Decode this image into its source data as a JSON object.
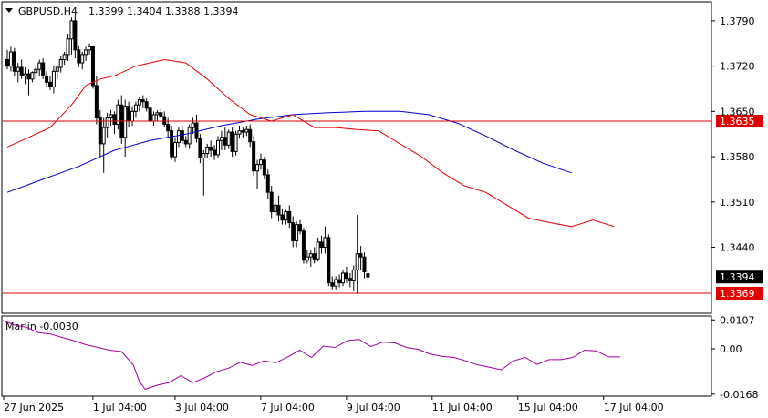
{
  "header": {
    "symbol_timeframe": "GBPUSD,H4",
    "ohlc": "1.3399 1.3404 1.3388 1.3394"
  },
  "colors": {
    "background": "#ffffff",
    "candle": "#000000",
    "ma_fast": "#e00000",
    "ma_slow": "#0000cc",
    "level_line": "#e00000",
    "oscillator": "#a000a0",
    "grid_border": "#000000"
  },
  "chart_data": [
    {
      "type": "candlestick",
      "name": "GBPUSD,H4",
      "y_axis_ticks": [
        "1.3790",
        "1.3720",
        "1.3650",
        "1.3580",
        "1.3510",
        "1.3440"
      ],
      "ylim": [
        1.3338,
        1.3818
      ],
      "x_axis_ticks": [
        "27 Jun 2025",
        "1 Jul 04:00",
        "3 Jul 04:00",
        "7 Jul 04:00",
        "9 Jul 04:00",
        "11 Jul 04:00",
        "15 Jul 04:00",
        "17 Jul 04:00"
      ],
      "x_tick_bar_index": [
        0,
        25,
        48,
        72,
        96,
        120,
        144,
        168
      ],
      "current_price": "1.3394",
      "levels": [
        {
          "value": 1.3635,
          "label": "1.3635"
        },
        {
          "value": 1.3369,
          "label": "1.3369"
        }
      ],
      "candles_ohlc": [
        [
          1.373,
          1.3745,
          1.3715,
          1.372
        ],
        [
          1.372,
          1.375,
          1.3712,
          1.3742
        ],
        [
          1.3742,
          1.3748,
          1.3705,
          1.3712
        ],
        [
          1.3712,
          1.3725,
          1.3695,
          1.3718
        ],
        [
          1.3718,
          1.373,
          1.37,
          1.3705
        ],
        [
          1.3705,
          1.3718,
          1.3692,
          1.3708
        ],
        [
          1.3708,
          1.3715,
          1.3675,
          1.37
        ],
        [
          1.37,
          1.3712,
          1.3695,
          1.371
        ],
        [
          1.371,
          1.372,
          1.37,
          1.3715
        ],
        [
          1.3715,
          1.373,
          1.3705,
          1.3725
        ],
        [
          1.3725,
          1.3732,
          1.37,
          1.3705
        ],
        [
          1.3705,
          1.3712,
          1.3688,
          1.3695
        ],
        [
          1.3695,
          1.3705,
          1.3683,
          1.3688
        ],
        [
          1.3688,
          1.372,
          1.3678,
          1.3712
        ],
        [
          1.3712,
          1.3722,
          1.37,
          1.3718
        ],
        [
          1.3718,
          1.3735,
          1.371,
          1.373
        ],
        [
          1.373,
          1.3742,
          1.3722,
          1.3738
        ],
        [
          1.3738,
          1.377,
          1.3728,
          1.3762
        ],
        [
          1.3762,
          1.3795,
          1.3738,
          1.379
        ],
        [
          1.379,
          1.38,
          1.3732,
          1.3745
        ],
        [
          1.3745,
          1.3752,
          1.3718,
          1.3725
        ],
        [
          1.3725,
          1.3742,
          1.3715,
          1.3738
        ],
        [
          1.3738,
          1.375,
          1.3728,
          1.3745
        ],
        [
          1.3745,
          1.3755,
          1.3738,
          1.375
        ],
        [
          1.375,
          1.3752,
          1.3685,
          1.369
        ],
        [
          1.369,
          1.3705,
          1.363,
          1.364
        ],
        [
          1.364,
          1.3652,
          1.358,
          1.36
        ],
        [
          1.36,
          1.364,
          1.3555,
          1.3625
        ],
        [
          1.3625,
          1.3648,
          1.361,
          1.364
        ],
        [
          1.364,
          1.3652,
          1.3628,
          1.3645
        ],
        [
          1.3645,
          1.365,
          1.3615,
          1.363
        ],
        [
          1.363,
          1.3668,
          1.3622,
          1.366
        ],
        [
          1.366,
          1.3675,
          1.36,
          1.361
        ],
        [
          1.361,
          1.3668,
          1.358,
          1.3658
        ],
        [
          1.3658,
          1.3665,
          1.3625,
          1.3635
        ],
        [
          1.3635,
          1.3658,
          1.3628,
          1.365
        ],
        [
          1.365,
          1.3665,
          1.364,
          1.366
        ],
        [
          1.366,
          1.3672,
          1.365,
          1.3668
        ],
        [
          1.3668,
          1.3675,
          1.3655,
          1.3665
        ],
        [
          1.3665,
          1.367,
          1.365,
          1.3655
        ],
        [
          1.3655,
          1.3662,
          1.3628,
          1.3635
        ],
        [
          1.3635,
          1.365,
          1.3628,
          1.3645
        ],
        [
          1.3645,
          1.3652,
          1.3635,
          1.3648
        ],
        [
          1.3648,
          1.3655,
          1.3638,
          1.3642
        ],
        [
          1.3642,
          1.365,
          1.3625,
          1.363
        ],
        [
          1.363,
          1.364,
          1.361,
          1.362
        ],
        [
          1.362,
          1.3628,
          1.3575,
          1.358
        ],
        [
          1.358,
          1.361,
          1.3572,
          1.3602
        ],
        [
          1.3602,
          1.3625,
          1.3595,
          1.362
        ],
        [
          1.362,
          1.3628,
          1.36,
          1.3605
        ],
        [
          1.3605,
          1.3612,
          1.3595,
          1.36
        ],
        [
          1.36,
          1.363,
          1.3592,
          1.3625
        ],
        [
          1.3625,
          1.364,
          1.3615,
          1.3632
        ],
        [
          1.3632,
          1.3645,
          1.3602,
          1.3608
        ],
        [
          1.3608,
          1.3615,
          1.357,
          1.3578
        ],
        [
          1.3578,
          1.359,
          1.352,
          1.3585
        ],
        [
          1.3585,
          1.36,
          1.3578,
          1.3595
        ],
        [
          1.3595,
          1.3605,
          1.358,
          1.359
        ],
        [
          1.359,
          1.3598,
          1.3575,
          1.3583
        ],
        [
          1.3583,
          1.3612,
          1.3578,
          1.3605
        ],
        [
          1.3605,
          1.362,
          1.359,
          1.361
        ],
        [
          1.361,
          1.3625,
          1.359,
          1.3598
        ],
        [
          1.3598,
          1.3622,
          1.3592,
          1.3618
        ],
        [
          1.3618,
          1.3625,
          1.358,
          1.3588
        ],
        [
          1.3588,
          1.362,
          1.3582,
          1.3615
        ],
        [
          1.3615,
          1.3628,
          1.3608,
          1.362
        ],
        [
          1.362,
          1.3625,
          1.361,
          1.3618
        ],
        [
          1.3618,
          1.3628,
          1.3612,
          1.3622
        ],
        [
          1.3622,
          1.363,
          1.3595,
          1.3603
        ],
        [
          1.3603,
          1.3612,
          1.355,
          1.3558
        ],
        [
          1.3558,
          1.3575,
          1.353,
          1.3568
        ],
        [
          1.3568,
          1.3585,
          1.356,
          1.3575
        ],
        [
          1.3575,
          1.358,
          1.3545,
          1.3552
        ],
        [
          1.3552,
          1.356,
          1.3515,
          1.3525
        ],
        [
          1.3525,
          1.3535,
          1.3485,
          1.3495
        ],
        [
          1.3495,
          1.3515,
          1.3488,
          1.3505
        ],
        [
          1.3505,
          1.352,
          1.348,
          1.349
        ],
        [
          1.349,
          1.35,
          1.3475,
          1.3482
        ],
        [
          1.3482,
          1.3498,
          1.3475,
          1.3495
        ],
        [
          1.3495,
          1.3505,
          1.347,
          1.3478
        ],
        [
          1.3478,
          1.3488,
          1.344,
          1.345
        ],
        [
          1.345,
          1.348,
          1.344,
          1.3475
        ],
        [
          1.3475,
          1.3482,
          1.346,
          1.3465
        ],
        [
          1.3465,
          1.347,
          1.3415,
          1.342
        ],
        [
          1.342,
          1.3435,
          1.3415,
          1.3425
        ],
        [
          1.3425,
          1.3435,
          1.341,
          1.343
        ],
        [
          1.343,
          1.344,
          1.3415,
          1.3422
        ],
        [
          1.3422,
          1.3455,
          1.3418,
          1.3448
        ],
        [
          1.3448,
          1.3458,
          1.343,
          1.344
        ],
        [
          1.344,
          1.3472,
          1.343,
          1.3455
        ],
        [
          1.3455,
          1.346,
          1.338,
          1.3385
        ],
        [
          1.3385,
          1.3395,
          1.3375,
          1.338
        ],
        [
          1.338,
          1.3395,
          1.3375,
          1.339
        ],
        [
          1.339,
          1.3398,
          1.3378,
          1.3385
        ],
        [
          1.3385,
          1.3405,
          1.338,
          1.34
        ],
        [
          1.34,
          1.341,
          1.3385,
          1.3392
        ],
        [
          1.3392,
          1.34,
          1.3378,
          1.3388
        ],
        [
          1.3388,
          1.3412,
          1.3372,
          1.3405
        ],
        [
          1.3405,
          1.349,
          1.3368,
          1.343
        ],
        [
          1.343,
          1.3442,
          1.3405,
          1.3425
        ],
        [
          1.3425,
          1.3432,
          1.3392,
          1.3402
        ],
        [
          1.3399,
          1.3404,
          1.3388,
          1.3394
        ]
      ],
      "ma_fast": [
        [
          0,
          1.3595
        ],
        [
          6,
          1.361
        ],
        [
          12,
          1.3625
        ],
        [
          18,
          1.366
        ],
        [
          22,
          1.369
        ],
        [
          26,
          1.37
        ],
        [
          30,
          1.3705
        ],
        [
          36,
          1.372
        ],
        [
          44,
          1.373
        ],
        [
          50,
          1.3725
        ],
        [
          56,
          1.37
        ],
        [
          62,
          1.367
        ],
        [
          68,
          1.3645
        ],
        [
          74,
          1.3635
        ],
        [
          80,
          1.3645
        ],
        [
          86,
          1.3625
        ],
        [
          92,
          1.3625
        ],
        [
          98,
          1.3622
        ],
        [
          104,
          1.362
        ],
        [
          110,
          1.36
        ],
        [
          116,
          1.358
        ],
        [
          122,
          1.3555
        ],
        [
          128,
          1.3535
        ],
        [
          134,
          1.3525
        ],
        [
          140,
          1.3505
        ],
        [
          146,
          1.3485
        ],
        [
          152,
          1.3478
        ],
        [
          158,
          1.3472
        ],
        [
          164,
          1.3482
        ],
        [
          170,
          1.3472
        ]
      ],
      "ma_slow": [
        [
          0,
          1.3525
        ],
        [
          10,
          1.3545
        ],
        [
          20,
          1.3565
        ],
        [
          30,
          1.359
        ],
        [
          40,
          1.3605
        ],
        [
          50,
          1.3615
        ],
        [
          60,
          1.3628
        ],
        [
          70,
          1.3638
        ],
        [
          80,
          1.3645
        ],
        [
          90,
          1.3648
        ],
        [
          100,
          1.365
        ],
        [
          110,
          1.365
        ],
        [
          118,
          1.3645
        ],
        [
          126,
          1.3632
        ],
        [
          134,
          1.3612
        ],
        [
          142,
          1.359
        ],
        [
          150,
          1.357
        ],
        [
          158,
          1.3555
        ]
      ]
    },
    {
      "type": "line",
      "name": "Marlin",
      "title": "Marlin -0.0030",
      "y_axis_ticks": [
        "0.0107",
        "0.00",
        "-0.0168"
      ],
      "ylim": [
        -0.0172,
        0.0118
      ],
      "series": [
        {
          "values": [
            [
              0,
              0.0105
            ],
            [
              4,
              0.0088
            ],
            [
              8,
              0.008
            ],
            [
              12,
              0.006
            ],
            [
              16,
              0.0055
            ],
            [
              20,
              0.0042
            ],
            [
              24,
              0.003
            ],
            [
              28,
              0.0015
            ],
            [
              32,
              0.0005
            ],
            [
              36,
              -0.0005
            ],
            [
              40,
              -0.001
            ],
            [
              44,
              -0.006
            ],
            [
              46,
              -0.012
            ],
            [
              48,
              -0.015
            ],
            [
              52,
              -0.0135
            ],
            [
              56,
              -0.0125
            ],
            [
              60,
              -0.01
            ],
            [
              64,
              -0.0125
            ],
            [
              68,
              -0.0108
            ],
            [
              72,
              -0.0085
            ],
            [
              76,
              -0.0072
            ],
            [
              80,
              -0.005
            ],
            [
              84,
              -0.0062
            ],
            [
              88,
              -0.0045
            ],
            [
              92,
              -0.0052
            ],
            [
              96,
              -0.003
            ],
            [
              100,
              -0.0005
            ],
            [
              104,
              -0.0032
            ],
            [
              108,
              0.001
            ],
            [
              112,
              0.0005
            ],
            [
              116,
              0.003
            ],
            [
              120,
              0.0035
            ],
            [
              124,
              0.0008
            ],
            [
              128,
              0.0025
            ],
            [
              132,
              0.0022
            ],
            [
              136,
              0.0005
            ],
            [
              140,
              -0.0002
            ],
            [
              144,
              -0.002
            ],
            [
              148,
              -0.0028
            ],
            [
              152,
              -0.0032
            ],
            [
              156,
              -0.0045
            ],
            [
              160,
              -0.006
            ],
            [
              164,
              -0.0068
            ],
            [
              168,
              -0.0078
            ],
            [
              172,
              -0.0045
            ],
            [
              176,
              -0.0032
            ],
            [
              180,
              -0.0058
            ],
            [
              184,
              -0.004
            ],
            [
              188,
              -0.004
            ],
            [
              192,
              -0.0032
            ],
            [
              196,
              -0.0005
            ],
            [
              200,
              -0.0008
            ],
            [
              204,
              -0.003
            ],
            [
              208,
              -0.003
            ]
          ]
        }
      ]
    }
  ]
}
